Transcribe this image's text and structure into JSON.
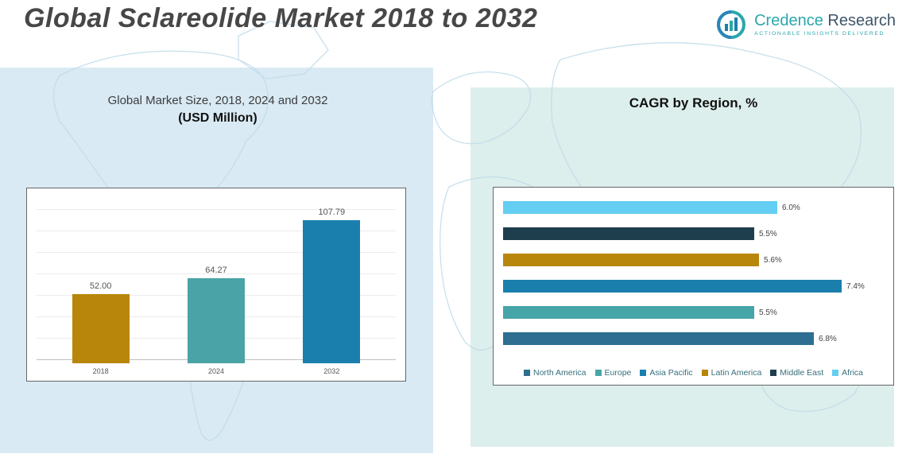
{
  "header": {
    "title": "Global Sclareolide Market 2018 to 2032"
  },
  "logo": {
    "brand_primary": "Credence",
    "brand_secondary": "Research",
    "tagline": "Actionable Insights Delivered",
    "accent_color": "#2aa7ad"
  },
  "left_chart": {
    "title_line1": "Global Market Size, 2018, 2024 and 2032",
    "title_line2": "(USD Million)"
  },
  "right_chart": {
    "title": "CAGR by Region, %"
  },
  "chart_data": [
    {
      "type": "bar",
      "title": "Global Market Size, 2018, 2024 and 2032 (USD Million)",
      "categories": [
        "2018",
        "2024",
        "2032"
      ],
      "values": [
        52.0,
        64.27,
        107.79
      ],
      "data_labels": [
        "52.00",
        "64.27",
        "107.79"
      ],
      "colors": [
        "#b8860b",
        "#4aa3a6",
        "#1b7fae"
      ],
      "xlabel": "",
      "ylabel": "USD Million",
      "ylim": [
        0,
        120
      ],
      "grid": true
    },
    {
      "type": "bar-horizontal",
      "title": "CAGR by Region, %",
      "categories": [
        "Africa",
        "Middle East",
        "Latin America",
        "Asia Pacific",
        "Europe",
        "North America"
      ],
      "values": [
        6.0,
        5.5,
        5.6,
        7.4,
        5.5,
        6.8
      ],
      "data_labels": [
        "6.0%",
        "5.5%",
        "5.6%",
        "7.4%",
        "5.5%",
        "6.8%"
      ],
      "colors": [
        "#63cef2",
        "#1e3e4e",
        "#b8860b",
        "#1b7fae",
        "#46a5a8",
        "#2e6e90"
      ],
      "xlim": [
        0,
        8
      ],
      "legend_position": "bottom",
      "legend": [
        "North America",
        "Europe",
        "Asia Pacific",
        "Latin America",
        "Middle East",
        "Africa"
      ],
      "legend_colors": [
        "#2e6e90",
        "#46a5a8",
        "#1b7fae",
        "#b8860b",
        "#1e3e4e",
        "#63cef2"
      ]
    }
  ]
}
